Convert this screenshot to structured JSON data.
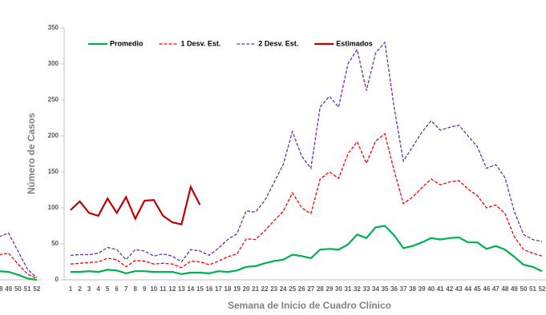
{
  "chart_data": [
    {
      "type": "line",
      "categories": [
        "48",
        "49",
        "50",
        "51",
        "52"
      ],
      "series": [
        {
          "name": "2 Desv. Est.",
          "color": "#7030a0",
          "dash": true,
          "values": [
            60,
            65,
            40,
            15,
            3
          ]
        },
        {
          "name": "1 Desv. Est.",
          "color": "#ff0000",
          "dash": true,
          "values": [
            35,
            37,
            22,
            8,
            2
          ]
        },
        {
          "name": "Promedio",
          "color": "#00b050",
          "dash": false,
          "values": [
            12,
            11,
            7,
            2,
            0
          ]
        }
      ],
      "ylim": [
        0,
        350
      ]
    },
    {
      "type": "line",
      "xlabel": "Semana de Inicio de Cuadro Clínico",
      "ylabel": "Número de Casos",
      "categories": [
        "1",
        "2",
        "3",
        "4",
        "5",
        "6",
        "7",
        "8",
        "9",
        "10",
        "11",
        "12",
        "13",
        "14",
        "15",
        "16",
        "17",
        "18",
        "19",
        "20",
        "21",
        "22",
        "23",
        "24",
        "25",
        "26",
        "27",
        "28",
        "29",
        "30",
        "31",
        "32",
        "33",
        "34",
        "35",
        "36",
        "37",
        "38",
        "39",
        "40",
        "41",
        "42",
        "43",
        "44",
        "45",
        "46",
        "47",
        "48",
        "49",
        "50",
        "51",
        "52"
      ],
      "series": [
        {
          "name": "Promedio",
          "color": "#00b050",
          "dash": false,
          "values": [
            11,
            11,
            12,
            11,
            14,
            13,
            9,
            12,
            12,
            11,
            11,
            11,
            8,
            10,
            10,
            9,
            12,
            11,
            13,
            18,
            19,
            23,
            26,
            28,
            35,
            33,
            30,
            42,
            43,
            42,
            49,
            63,
            58,
            73,
            75,
            62,
            44,
            47,
            52,
            58,
            56,
            58,
            59,
            52,
            52,
            43,
            47,
            42,
            32,
            21,
            18,
            12
          ]
        },
        {
          "name": "1 Desv. Est.",
          "color": "#ff0000",
          "dash": true,
          "values": [
            22,
            23,
            24,
            25,
            30,
            28,
            18,
            27,
            26,
            22,
            23,
            22,
            17,
            26,
            25,
            21,
            26,
            32,
            36,
            57,
            56,
            68,
            82,
            95,
            121,
            100,
            92,
            140,
            150,
            141,
            175,
            192,
            162,
            193,
            203,
            152,
            106,
            115,
            128,
            140,
            132,
            136,
            138,
            126,
            117,
            100,
            104,
            92,
            60,
            42,
            37,
            33
          ]
        },
        {
          "name": "2 Desv. Est.",
          "color": "#7030a0",
          "dash": true,
          "values": [
            34,
            35,
            35,
            37,
            45,
            42,
            28,
            42,
            40,
            33,
            36,
            33,
            25,
            42,
            40,
            34,
            44,
            56,
            64,
            96,
            94,
            110,
            135,
            160,
            206,
            172,
            155,
            240,
            255,
            240,
            300,
            320,
            263,
            315,
            330,
            240,
            165,
            185,
            205,
            221,
            208,
            212,
            215,
            200,
            185,
            155,
            160,
            142,
            95,
            63,
            56,
            53
          ]
        },
        {
          "name": "Estimados",
          "color": "#c00000",
          "dash": false,
          "values": [
            97,
            109,
            93,
            89,
            113,
            93,
            115,
            85,
            110,
            111,
            89,
            80,
            77,
            129,
            104,
            null,
            null,
            null,
            null,
            null,
            null,
            null,
            null,
            null,
            null,
            null,
            null,
            null,
            null,
            null,
            null,
            null,
            null,
            null,
            null,
            null,
            null,
            null,
            null,
            null,
            null,
            null,
            null,
            null,
            null,
            null,
            null,
            null,
            null,
            null,
            null,
            null
          ]
        }
      ],
      "ylim": [
        0,
        350
      ],
      "yticks": [
        0,
        50,
        100,
        150,
        200,
        250,
        300,
        350
      ],
      "legend": "top-left"
    }
  ]
}
